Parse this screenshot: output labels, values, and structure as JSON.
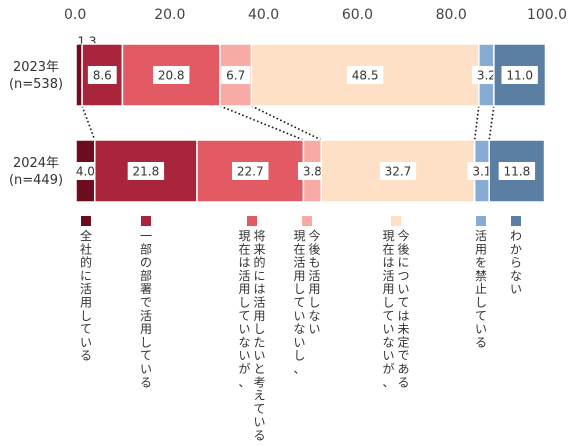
{
  "chart_data": {
    "type": "stacked-bar-horizontal",
    "xlim": [
      0,
      100
    ],
    "x_ticks": [
      "0.0",
      "20.0",
      "40.0",
      "60.0",
      "80.0",
      "100.0"
    ],
    "categories": [
      {
        "year": "2023年",
        "n": "(n=538)"
      },
      {
        "year": "2024年",
        "n": "(n=449)"
      }
    ],
    "series": [
      {
        "name": "全社的に活用している",
        "color": "#6e0c1f",
        "values": [
          1.3,
          4.0
        ],
        "labels": [
          "1.3",
          "4.0"
        ]
      },
      {
        "name": "一部の部署で活用している",
        "color": "#a8253b",
        "values": [
          8.6,
          21.8
        ],
        "labels": [
          "8.6",
          "21.8"
        ]
      },
      {
        "name": "現在は活用していないが、将来的には活用したいと考えている",
        "color": "#e25b64",
        "values": [
          20.8,
          22.7
        ],
        "labels": [
          "20.8",
          "22.7"
        ]
      },
      {
        "name": "現在活用していないし、今後も活用しない",
        "color": "#f7aba4",
        "values": [
          6.7,
          3.8
        ],
        "labels": [
          "6.7",
          "3.8"
        ]
      },
      {
        "name": "現在は活用していないが、今後については未定である",
        "color": "#fde0c5",
        "values": [
          48.5,
          32.7
        ],
        "labels": [
          "48.5",
          "32.7"
        ]
      },
      {
        "name": "活用を禁止している",
        "color": "#86acd6",
        "values": [
          3.2,
          3.1
        ],
        "labels": [
          "3.2",
          "3.1"
        ]
      },
      {
        "name": "わからない",
        "color": "#5b7fa3",
        "values": [
          11.0,
          11.8
        ],
        "labels": [
          "11.0",
          "11.8"
        ]
      }
    ],
    "legend_position": "bottom",
    "connector_lines": "dotted"
  }
}
